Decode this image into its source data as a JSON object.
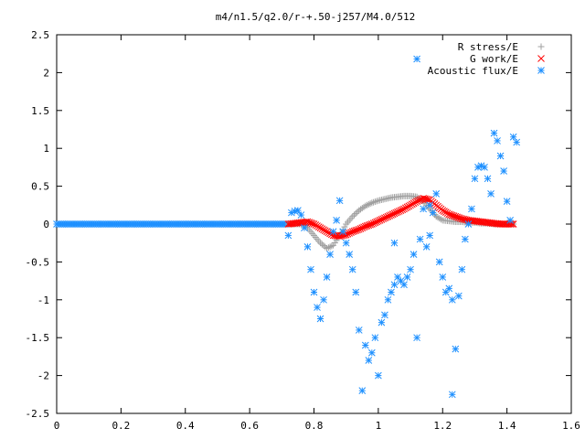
{
  "chart_data": {
    "type": "scatter",
    "title": "m4/n1.5/q2.0/r-+.50-j257/M4.0/512",
    "xlabel": "",
    "ylabel": "",
    "xlim": [
      0,
      1.6
    ],
    "ylim": [
      -2.5,
      2.5
    ],
    "x_ticks": [
      "0",
      "0.2",
      "0.4",
      "0.6",
      "0.8",
      "1",
      "1.2",
      "1.4",
      "1.6"
    ],
    "y_ticks": [
      "2.5",
      "2",
      "1.5",
      "1",
      "0.5",
      "0",
      "-0.5",
      "-1",
      "-1.5",
      "-2",
      "-2.5"
    ],
    "legend_position": "top-right",
    "grid": false,
    "series": [
      {
        "name": "R stress/E",
        "marker": "plus",
        "color": "#a0a0a0",
        "points": [
          [
            0.72,
            0
          ],
          [
            0.74,
            0
          ],
          [
            0.76,
            0
          ],
          [
            0.78,
            -0.05
          ],
          [
            0.8,
            -0.15
          ],
          [
            0.82,
            -0.25
          ],
          [
            0.84,
            -0.32
          ],
          [
            0.86,
            -0.28
          ],
          [
            0.88,
            -0.15
          ],
          [
            0.9,
            0.0
          ],
          [
            0.92,
            0.1
          ],
          [
            0.94,
            0.18
          ],
          [
            0.96,
            0.24
          ],
          [
            0.98,
            0.28
          ],
          [
            1.0,
            0.31
          ],
          [
            1.02,
            0.33
          ],
          [
            1.04,
            0.35
          ],
          [
            1.06,
            0.36
          ],
          [
            1.08,
            0.37
          ],
          [
            1.1,
            0.37
          ],
          [
            1.12,
            0.36
          ],
          [
            1.14,
            0.3
          ],
          [
            1.16,
            0.2
          ],
          [
            1.18,
            0.1
          ],
          [
            1.2,
            0.05
          ],
          [
            1.22,
            0.04
          ],
          [
            1.24,
            0.03
          ],
          [
            1.26,
            0.03
          ],
          [
            1.28,
            0.02
          ],
          [
            1.3,
            0.02
          ],
          [
            1.32,
            0.01
          ],
          [
            1.34,
            0.01
          ],
          [
            1.36,
            0.0
          ],
          [
            1.38,
            0.0
          ],
          [
            1.4,
            0.0
          ],
          [
            1.42,
            0.0
          ]
        ]
      },
      {
        "name": "G work/E",
        "marker": "cross",
        "color": "#ff0000",
        "points": [
          [
            0.72,
            0
          ],
          [
            0.74,
            0.01
          ],
          [
            0.76,
            0.02
          ],
          [
            0.78,
            0.03
          ],
          [
            0.8,
            0.0
          ],
          [
            0.82,
            -0.05
          ],
          [
            0.84,
            -0.1
          ],
          [
            0.86,
            -0.15
          ],
          [
            0.88,
            -0.16
          ],
          [
            0.9,
            -0.14
          ],
          [
            0.92,
            -0.1
          ],
          [
            0.94,
            -0.07
          ],
          [
            0.96,
            -0.03
          ],
          [
            0.98,
            0.0
          ],
          [
            1.0,
            0.04
          ],
          [
            1.02,
            0.08
          ],
          [
            1.04,
            0.12
          ],
          [
            1.06,
            0.16
          ],
          [
            1.08,
            0.2
          ],
          [
            1.1,
            0.25
          ],
          [
            1.12,
            0.3
          ],
          [
            1.14,
            0.34
          ],
          [
            1.16,
            0.32
          ],
          [
            1.18,
            0.25
          ],
          [
            1.2,
            0.18
          ],
          [
            1.22,
            0.13
          ],
          [
            1.24,
            0.1
          ],
          [
            1.26,
            0.07
          ],
          [
            1.28,
            0.05
          ],
          [
            1.3,
            0.04
          ],
          [
            1.32,
            0.03
          ],
          [
            1.34,
            0.02
          ],
          [
            1.36,
            0.01
          ],
          [
            1.38,
            0.0
          ],
          [
            1.4,
            0.0
          ],
          [
            1.42,
            0.0
          ]
        ]
      },
      {
        "name": "Acoustic flux/E",
        "marker": "star",
        "color": "#1e90ff",
        "points": [
          [
            0.72,
            -0.15
          ],
          [
            0.73,
            0.15
          ],
          [
            0.74,
            0.17
          ],
          [
            0.75,
            0.18
          ],
          [
            0.76,
            0.12
          ],
          [
            0.77,
            -0.05
          ],
          [
            0.78,
            -0.3
          ],
          [
            0.79,
            -0.6
          ],
          [
            0.8,
            -0.9
          ],
          [
            0.81,
            -1.1
          ],
          [
            0.82,
            -1.25
          ],
          [
            0.83,
            -1.0
          ],
          [
            0.84,
            -0.7
          ],
          [
            0.85,
            -0.4
          ],
          [
            0.86,
            -0.1
          ],
          [
            0.87,
            0.05
          ],
          [
            0.88,
            0.31
          ],
          [
            0.89,
            -0.1
          ],
          [
            0.9,
            -0.25
          ],
          [
            0.91,
            -0.4
          ],
          [
            0.92,
            -0.6
          ],
          [
            0.93,
            -0.9
          ],
          [
            0.94,
            -1.4
          ],
          [
            0.95,
            -2.2
          ],
          [
            0.96,
            -1.6
          ],
          [
            0.97,
            -1.8
          ],
          [
            0.98,
            -1.7
          ],
          [
            0.99,
            -1.5
          ],
          [
            1.0,
            -2.0
          ],
          [
            1.01,
            -1.3
          ],
          [
            1.02,
            -1.2
          ],
          [
            1.03,
            -1.0
          ],
          [
            1.04,
            -0.9
          ],
          [
            1.05,
            -0.8
          ],
          [
            1.06,
            -0.7
          ],
          [
            1.07,
            -0.75
          ],
          [
            1.08,
            -0.8
          ],
          [
            1.09,
            -0.7
          ],
          [
            1.1,
            -0.6
          ],
          [
            1.11,
            -0.4
          ],
          [
            1.12,
            2.18
          ],
          [
            1.13,
            -0.2
          ],
          [
            1.14,
            0.2
          ],
          [
            1.15,
            -0.3
          ],
          [
            1.16,
            -0.15
          ],
          [
            1.17,
            0.15
          ],
          [
            1.18,
            0.4
          ],
          [
            1.19,
            -0.5
          ],
          [
            1.2,
            -0.7
          ],
          [
            1.21,
            -0.9
          ],
          [
            1.22,
            -0.85
          ],
          [
            1.23,
            -1.0
          ],
          [
            1.24,
            -1.65
          ],
          [
            1.25,
            -0.95
          ],
          [
            1.26,
            -0.6
          ],
          [
            1.27,
            -0.2
          ],
          [
            1.28,
            0.0
          ],
          [
            1.29,
            0.2
          ],
          [
            1.3,
            0.6
          ],
          [
            1.31,
            0.75
          ],
          [
            1.32,
            0.77
          ],
          [
            1.33,
            0.75
          ],
          [
            1.34,
            0.6
          ],
          [
            1.35,
            0.4
          ],
          [
            1.36,
            1.2
          ],
          [
            1.37,
            1.1
          ],
          [
            1.38,
            0.9
          ],
          [
            1.39,
            0.7
          ],
          [
            1.4,
            0.3
          ],
          [
            1.41,
            0.05
          ],
          [
            1.42,
            1.15
          ],
          [
            1.43,
            1.08
          ],
          [
            1.12,
            -1.5
          ],
          [
            1.23,
            -2.25
          ],
          [
            1.05,
            -0.25
          ],
          [
            1.16,
            0.25
          ]
        ]
      }
    ]
  }
}
